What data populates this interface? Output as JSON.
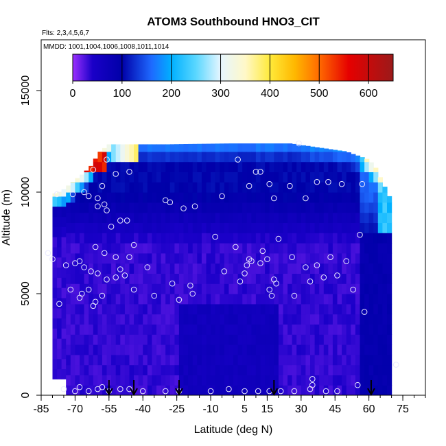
{
  "chart_data": {
    "type": "heatmap",
    "title": "ATOM3 Southbound HNO3_CIT",
    "subtitle_flights": "Flts: 2,3,4,5,6,7",
    "subtitle_dates": "MMDD: 1001,1004,1006,1008,1011,1014",
    "xlabel": "Latitude (deg N)",
    "ylabel": "Altitude (m)",
    "xlim": [
      -85,
      85
    ],
    "ylim": [
      0,
      17500
    ],
    "x_ticks": [
      -85,
      -70,
      -55,
      -40,
      -25,
      -10,
      5,
      15,
      30,
      45,
      60,
      75
    ],
    "x_minor_step": 5,
    "y_ticks": [
      0,
      5000,
      10000,
      15000
    ],
    "colorbar": {
      "range": [
        0,
        650
      ],
      "ticks": [
        0,
        100,
        200,
        300,
        400,
        500,
        600
      ],
      "stops": [
        {
          "v": 0,
          "color": "#9b30ff"
        },
        {
          "v": 40,
          "color": "#1a00c8"
        },
        {
          "v": 100,
          "color": "#0000a8"
        },
        {
          "v": 160,
          "color": "#1e6aff"
        },
        {
          "v": 200,
          "color": "#00b0ff"
        },
        {
          "v": 250,
          "color": "#5ad7ff"
        },
        {
          "v": 300,
          "color": "#e6f6ff"
        },
        {
          "v": 350,
          "color": "#fff8c8"
        },
        {
          "v": 400,
          "color": "#ffea3a"
        },
        {
          "v": 450,
          "color": "#ffb800"
        },
        {
          "v": 500,
          "color": "#ff6a00"
        },
        {
          "v": 560,
          "color": "#e60000"
        },
        {
          "v": 650,
          "color": "#9b1a1a"
        }
      ]
    },
    "curtain_columns": [
      {
        "lat": -80,
        "top": 9900
      },
      {
        "lat": -76,
        "top": 10050
      },
      {
        "lat": -70,
        "top": 10600
      },
      {
        "lat": -66,
        "top": 10950
      },
      {
        "lat": -62,
        "top": 11400
      },
      {
        "lat": -60,
        "top": 11900
      },
      {
        "lat": -55,
        "top": 12350
      },
      {
        "lat": -30,
        "top": 12350
      },
      {
        "lat": 0,
        "top": 12400
      },
      {
        "lat": 25,
        "top": 12400
      },
      {
        "lat": 50,
        "top": 12000
      },
      {
        "lat": 55,
        "top": 11800
      },
      {
        "lat": 60,
        "top": 11600
      },
      {
        "lat": 63,
        "top": 11200
      },
      {
        "lat": 66,
        "top": 10500
      },
      {
        "lat": 69,
        "top": 9800
      },
      {
        "lat": 70,
        "top": 7500
      }
    ],
    "flight_markers_lat": [
      -55,
      -44,
      -24,
      18,
      61
    ],
    "observations": [
      {
        "lat": -78,
        "alt": 9900
      },
      {
        "lat": -71,
        "alt": 9900
      },
      {
        "lat": -66,
        "alt": 10000
      },
      {
        "lat": -64,
        "alt": 9800
      },
      {
        "lat": -60,
        "alt": 9700
      },
      {
        "lat": -57,
        "alt": 9400
      },
      {
        "lat": -60,
        "alt": 9300
      },
      {
        "lat": -56,
        "alt": 9100
      },
      {
        "lat": -54,
        "alt": 8300
      },
      {
        "lat": -50,
        "alt": 8600
      },
      {
        "lat": -47,
        "alt": 8600
      },
      {
        "lat": -58,
        "alt": 10300
      },
      {
        "lat": -52,
        "alt": 10900
      },
      {
        "lat": -46,
        "alt": 11000
      },
      {
        "lat": -56,
        "alt": 11600
      },
      {
        "lat": -62,
        "alt": 11100
      },
      {
        "lat": -30,
        "alt": 9600
      },
      {
        "lat": -28,
        "alt": 9500
      },
      {
        "lat": -22,
        "alt": 9200
      },
      {
        "lat": -17,
        "alt": 9300
      },
      {
        "lat": -5,
        "alt": 9800
      },
      {
        "lat": 2,
        "alt": 11600
      },
      {
        "lat": 10,
        "alt": 11000
      },
      {
        "lat": 12,
        "alt": 11000
      },
      {
        "lat": 7,
        "alt": 10300
      },
      {
        "lat": 16,
        "alt": 10400
      },
      {
        "lat": 18,
        "alt": 9700
      },
      {
        "lat": 25,
        "alt": 10300
      },
      {
        "lat": 29,
        "alt": 12400
      },
      {
        "lat": 32,
        "alt": 9700
      },
      {
        "lat": 37,
        "alt": 10500
      },
      {
        "lat": 42,
        "alt": 10500
      },
      {
        "lat": 48,
        "alt": 10400
      },
      {
        "lat": 57,
        "alt": 10400
      },
      {
        "lat": 56,
        "alt": 7900
      },
      {
        "lat": -82,
        "alt": 7000
      },
      {
        "lat": -80,
        "alt": 6700
      },
      {
        "lat": -74,
        "alt": 6400
      },
      {
        "lat": -70,
        "alt": 6500
      },
      {
        "lat": -68,
        "alt": 6600
      },
      {
        "lat": -66,
        "alt": 6300
      },
      {
        "lat": -63,
        "alt": 6100
      },
      {
        "lat": -61,
        "alt": 7300
      },
      {
        "lat": -57,
        "alt": 7000
      },
      {
        "lat": -52,
        "alt": 6800
      },
      {
        "lat": -46,
        "alt": 6800
      },
      {
        "lat": -44,
        "alt": 7400
      },
      {
        "lat": -56,
        "alt": 5700
      },
      {
        "lat": -52,
        "alt": 5800
      },
      {
        "lat": -48,
        "alt": 5900
      },
      {
        "lat": -60,
        "alt": 6000
      },
      {
        "lat": -50,
        "alt": 6200
      },
      {
        "lat": -38,
        "alt": 6300
      },
      {
        "lat": -72,
        "alt": 5200
      },
      {
        "lat": -68,
        "alt": 4800
      },
      {
        "lat": -67,
        "alt": 5000
      },
      {
        "lat": -64,
        "alt": 5200
      },
      {
        "lat": -62,
        "alt": 4400
      },
      {
        "lat": -61,
        "alt": 4600
      },
      {
        "lat": -58,
        "alt": 4900
      },
      {
        "lat": -77,
        "alt": 4500
      },
      {
        "lat": -44,
        "alt": 5200
      },
      {
        "lat": -35,
        "alt": 4900
      },
      {
        "lat": -27,
        "alt": 5500
      },
      {
        "lat": -24,
        "alt": 4700
      },
      {
        "lat": -19,
        "alt": 5400
      },
      {
        "lat": -18,
        "alt": 5000
      },
      {
        "lat": -8,
        "alt": 7800
      },
      {
        "lat": -4,
        "alt": 6100
      },
      {
        "lat": 1,
        "alt": 7300
      },
      {
        "lat": 3,
        "alt": 5600
      },
      {
        "lat": 5,
        "alt": 6000
      },
      {
        "lat": 6,
        "alt": 6400
      },
      {
        "lat": 7,
        "alt": 6700
      },
      {
        "lat": 8,
        "alt": 6600
      },
      {
        "lat": 12,
        "alt": 6500
      },
      {
        "lat": 13,
        "alt": 7100
      },
      {
        "lat": 15,
        "alt": 6700
      },
      {
        "lat": 16,
        "alt": 5200
      },
      {
        "lat": 17,
        "alt": 4900
      },
      {
        "lat": 18,
        "alt": 5700
      },
      {
        "lat": 19,
        "alt": 5500
      },
      {
        "lat": 20,
        "alt": 7700
      },
      {
        "lat": 26,
        "alt": 6800
      },
      {
        "lat": 27,
        "alt": 4900
      },
      {
        "lat": 32,
        "alt": 6300
      },
      {
        "lat": 34,
        "alt": 5600
      },
      {
        "lat": 37,
        "alt": 6400
      },
      {
        "lat": 40,
        "alt": 5800
      },
      {
        "lat": 43,
        "alt": 6800
      },
      {
        "lat": 46,
        "alt": 5900
      },
      {
        "lat": 50,
        "alt": 6600
      },
      {
        "lat": 53,
        "alt": 5200
      },
      {
        "lat": 58,
        "alt": 4100
      },
      {
        "lat": 72,
        "alt": 1500
      },
      {
        "lat": -75,
        "alt": 300
      },
      {
        "lat": -70,
        "alt": 200
      },
      {
        "lat": -68,
        "alt": 400
      },
      {
        "lat": -64,
        "alt": 200
      },
      {
        "lat": -60,
        "alt": 300
      },
      {
        "lat": -58,
        "alt": 400
      },
      {
        "lat": -55,
        "alt": 200
      },
      {
        "lat": -50,
        "alt": 300
      },
      {
        "lat": -46,
        "alt": 300
      },
      {
        "lat": -40,
        "alt": 200
      },
      {
        "lat": -30,
        "alt": 200
      },
      {
        "lat": -24,
        "alt": 200
      },
      {
        "lat": -10,
        "alt": 200
      },
      {
        "lat": -2,
        "alt": 300
      },
      {
        "lat": 5,
        "alt": 200
      },
      {
        "lat": 11,
        "alt": 200
      },
      {
        "lat": 16,
        "alt": 200
      },
      {
        "lat": 21,
        "alt": 200
      },
      {
        "lat": 27,
        "alt": 200
      },
      {
        "lat": 34,
        "alt": 300
      },
      {
        "lat": 35,
        "alt": 800
      },
      {
        "lat": 35,
        "alt": 500
      },
      {
        "lat": 41,
        "alt": 200
      },
      {
        "lat": 46,
        "alt": 200
      },
      {
        "lat": 55,
        "alt": 500
      }
    ]
  }
}
